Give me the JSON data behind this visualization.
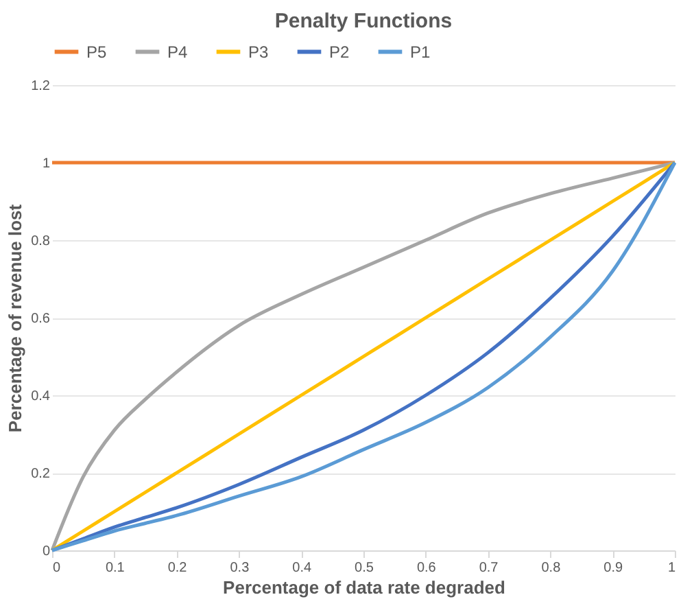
{
  "chart_data": {
    "type": "line",
    "title": "Penalty Functions",
    "xlabel": "Percentage of data rate degraded",
    "ylabel": "Percentage of revenue lost",
    "x": [
      0,
      0.05,
      0.1,
      0.15,
      0.2,
      0.3,
      0.4,
      0.5,
      0.6,
      0.7,
      0.8,
      0.9,
      1
    ],
    "series": [
      {
        "name": "P5",
        "color": "#ed7d31",
        "values": [
          1,
          1,
          1,
          1,
          1,
          1,
          1,
          1,
          1,
          1,
          1,
          1,
          1
        ]
      },
      {
        "name": "P4",
        "color": "#a5a5a5",
        "values": [
          0,
          0.19,
          0.31,
          0.39,
          0.46,
          0.58,
          0.66,
          0.73,
          0.8,
          0.87,
          0.92,
          0.96,
          1
        ]
      },
      {
        "name": "P3",
        "color": "#ffc000",
        "values": [
          0,
          0.05,
          0.1,
          0.15,
          0.2,
          0.3,
          0.4,
          0.5,
          0.6,
          0.7,
          0.8,
          0.9,
          1
        ]
      },
      {
        "name": "P2",
        "color": "#4472c4",
        "values": [
          0,
          0.03,
          0.06,
          0.085,
          0.11,
          0.17,
          0.24,
          0.31,
          0.4,
          0.51,
          0.65,
          0.81,
          1
        ]
      },
      {
        "name": "P1",
        "color": "#5b9bd5",
        "values": [
          0,
          0.025,
          0.05,
          0.07,
          0.09,
          0.14,
          0.19,
          0.26,
          0.33,
          0.42,
          0.55,
          0.72,
          1
        ]
      }
    ],
    "xlim": [
      0,
      1
    ],
    "xticks": [
      0,
      0.1,
      0.2,
      0.3,
      0.4,
      0.5,
      0.6,
      0.7,
      0.8,
      0.9,
      1
    ],
    "ylim": [
      0,
      1.2
    ],
    "yticks": [
      0,
      0.2,
      0.4,
      0.6,
      0.8,
      1,
      1.2
    ],
    "grid": "y",
    "legend": "top",
    "marker": "none",
    "line_style": "solid"
  }
}
